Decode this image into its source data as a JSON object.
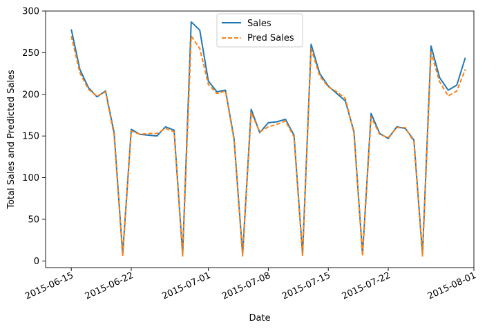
{
  "chart_data": {
    "type": "line",
    "xlabel": "Date",
    "ylabel": "Total Sales and Predicted Sales",
    "x_tick_labels": [
      "2015-06-15",
      "2015-06-22",
      "2015-07-01",
      "2015-07-08",
      "2015-07-15",
      "2015-07-22",
      "2015-08-01"
    ],
    "x_tick_dates": [
      "2015-06-15",
      "2015-06-22",
      "2015-07-01",
      "2015-07-08",
      "2015-07-15",
      "2015-07-22",
      "2015-08-01"
    ],
    "y_tick_labels": [
      "0",
      "50",
      "100",
      "150",
      "200",
      "250",
      "300"
    ],
    "y_ticks": [
      0,
      50,
      100,
      150,
      200,
      250,
      300
    ],
    "xlim": [
      "2015-06-12",
      "2015-08-01"
    ],
    "ylim": [
      -8,
      300
    ],
    "grid": false,
    "legend_position": "top-center",
    "x": [
      "2015-06-15",
      "2015-06-16",
      "2015-06-17",
      "2015-06-18",
      "2015-06-19",
      "2015-06-20",
      "2015-06-21",
      "2015-06-22",
      "2015-06-23",
      "2015-06-24",
      "2015-06-25",
      "2015-06-26",
      "2015-06-27",
      "2015-06-28",
      "2015-06-29",
      "2015-06-30",
      "2015-07-01",
      "2015-07-02",
      "2015-07-03",
      "2015-07-04",
      "2015-07-05",
      "2015-07-06",
      "2015-07-07",
      "2015-07-08",
      "2015-07-09",
      "2015-07-10",
      "2015-07-11",
      "2015-07-12",
      "2015-07-13",
      "2015-07-14",
      "2015-07-15",
      "2015-07-16",
      "2015-07-17",
      "2015-07-18",
      "2015-07-19",
      "2015-07-20",
      "2015-07-21",
      "2015-07-22",
      "2015-07-23",
      "2015-07-24",
      "2015-07-25",
      "2015-07-26",
      "2015-07-27",
      "2015-07-28",
      "2015-07-29",
      "2015-07-30",
      "2015-07-31"
    ],
    "series": [
      {
        "name": "Sales",
        "color": "#1f77b4",
        "style": "solid",
        "values": [
          278,
          230,
          208,
          197,
          204,
          154,
          8,
          158,
          152,
          151,
          150,
          161,
          157,
          8,
          287,
          277,
          216,
          203,
          205,
          147,
          8,
          182,
          154,
          166,
          167,
          170,
          151,
          8,
          260,
          225,
          210,
          201,
          192,
          155,
          8,
          177,
          153,
          147,
          161,
          159,
          145,
          8,
          258,
          220,
          205,
          211,
          244
        ]
      },
      {
        "name": "Pred Sales",
        "color": "#ff7f0e",
        "style": "dashed",
        "values": [
          270,
          226,
          206,
          198,
          203,
          151,
          6,
          156,
          152,
          153,
          153,
          159,
          155,
          6,
          270,
          255,
          212,
          201,
          204,
          145,
          6,
          178,
          155,
          161,
          164,
          168,
          149,
          6,
          255,
          222,
          209,
          203,
          195,
          153,
          6,
          173,
          152,
          148,
          160,
          160,
          143,
          6,
          250,
          215,
          198,
          204,
          230
        ]
      }
    ]
  }
}
